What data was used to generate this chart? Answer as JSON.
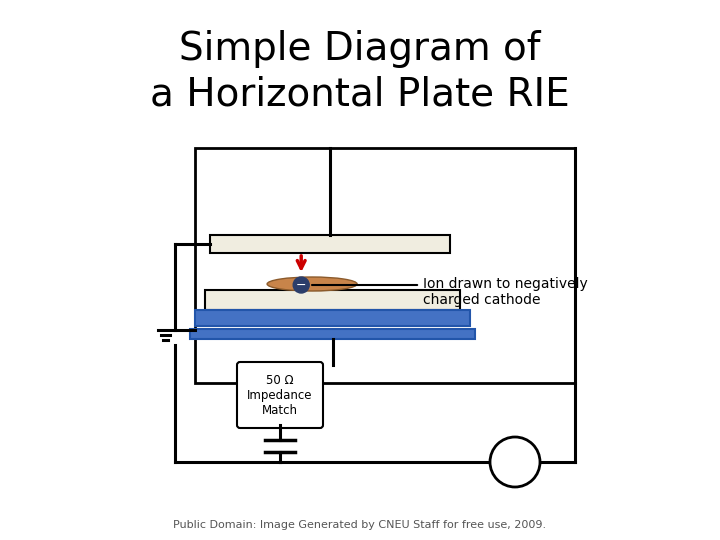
{
  "title_line1": "Simple Diagram of",
  "title_line2": "a Horizontal Plate RIE",
  "title_fontsize": 28,
  "footnote": "Public Domain: Image Generated by CNEU Staff for free use, 2009.",
  "footnote_fontsize": 8,
  "ion_label": "Ion drawn to negatively\ncharged cathode",
  "impedance_label": "50 Ω\nImpedance\nMatch",
  "bg_color": "#ffffff",
  "black": "#000000",
  "plate_color": "#f0ede0",
  "plate_border": "#000000",
  "blue_color": "#4472c4",
  "wafer_color": "#c8844a",
  "ion_color": "#2c3e6b",
  "arrow_color": "#cc0000"
}
